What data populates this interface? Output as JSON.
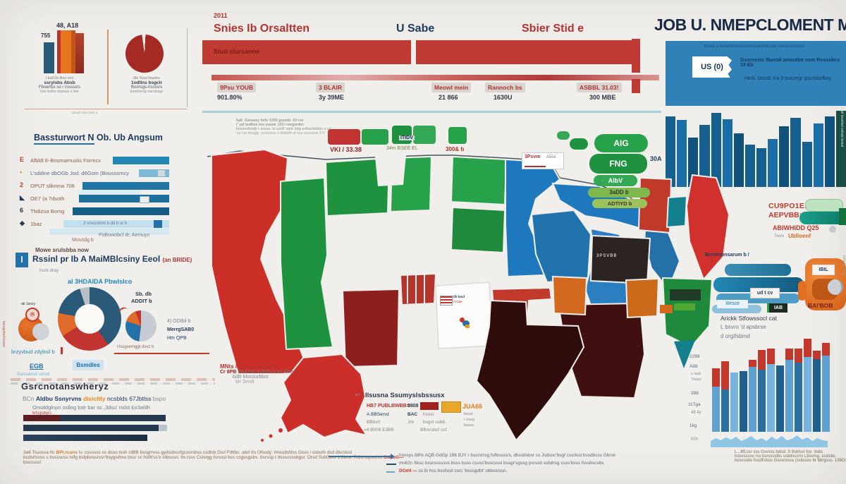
{
  "palette": {
    "bg": "#f1efec",
    "accent_red": "#bf3a33",
    "bright_red": "#cb2f28",
    "dark_red": "#8e1f1f",
    "deep_maroon": "#2f0d0d",
    "se_maroon": "#400f0f",
    "near_black": "#2b2422",
    "green": "#1f9240",
    "green2": "#27a24a",
    "dark_green": "#14703c",
    "state_blue": "#1d78be",
    "banner_blue": "#2f81b7",
    "bar_blue": "#15608f",
    "teal": "#13808d",
    "orange": "#e07020",
    "navy": "#1d3a5e",
    "footer_brown": "#8a6a52"
  },
  "top_left": {
    "bar_label_1": "755",
    "bar_label_2": "48, A18",
    "bar_caption": [
      "i ba01b Ikss ovs",
      "ssrylsbs Absb",
      "Fbswrlss so r rsssssrs",
      "bss bslbs bsssss s bsr"
    ],
    "pie_caption": [
      "Jits Ssscrlswiss-",
      "1odllns bsgclr",
      "fbsmsgs-lrssssrs",
      "bssrlssog osrslssgr"
    ],
    "micro": "' (bsssf ssss ssss s"
  },
  "header": {
    "year": "2011",
    "col1": "Snies Ib Orsaltten",
    "col2": "U Sabe",
    "col3": "Sbier Stid e",
    "bar_text": "Stud slursanne",
    "stats": [
      {
        "label": "9Psu YOUB",
        "value": "901.80%"
      },
      {
        "label": "3 BLAIR",
        "value": "3y 39ME"
      },
      {
        "label": "Meowl mein",
        "value": "21 866"
      },
      {
        "label": "Rannoch bs",
        "value": "1630U"
      },
      {
        "label": "ASBBL 31.03!",
        "value": "300 MBE"
      }
    ]
  },
  "masthead": {
    "title": "JOB U. NMEPCLOMENT MARKE",
    "badge": "US (0)",
    "line0": "bsblsl s bsssfsfssbsbsssfsssbsfsbsssb ssbsssssssbsf",
    "line1": "Gssrnsmc lbuvok amoutbe nsm Rossskns 10 Eb",
    "line2": "Herb. bbssb Xw 9 bsksrrgr gssnblsrlbsy",
    "vertical": "bsl brssfssl svlssb bsbsl"
  },
  "rank": {
    "title": "Bassturwort N Ob. Ub Angsum",
    "rows": [
      {
        "icon": "E",
        "label": "Afbldl E-Bnsmamuslis Formcx"
      },
      {
        "icon": "▪",
        "label": "L'sddine dbOGb Jod: d6Gom (Bousssmcy"
      },
      {
        "icon": "2",
        "label": "OPUT sliknma 706"
      },
      {
        "icon": "◣",
        "label": "OE7 (a 7dsoth"
      },
      {
        "icon": "6",
        "label": "Thdizua Bomg"
      },
      {
        "icon": "◆",
        "label": "1baz"
      }
    ],
    "row6_bar_text": "3 smszvbnn b dd b sr b",
    "fn1": "Mousdg b",
    "fn2": "PüBowobcf dr, Aemuyn",
    "fn3": "Mowe srulsbba now"
  },
  "donut_sec": {
    "icon": "l",
    "title": "Rssinl pr Ib A MaiMBlcsiny Eeol",
    "title_tag": "(an BRIDE)",
    "sub": "hunt dray",
    "chart_label": "al 3HDAIDA Pbwlslco",
    "mini_label": "ab 1sncy",
    "hand_glyph": "※",
    "pie2_l1": "Sb. db",
    "pie2_l2": "ADDIT b",
    "notes": [
      "4) ODIbil b",
      "MerrgSAB0",
      "Hm QPB"
    ],
    "link1": "brzyvbud zdybsil b",
    "ann": "Ussgvemggt dsvz b",
    "link2": "EGB",
    "link3": "Bsmdles",
    "link4": "Ganvalnsd schod",
    "edge_vertical": "bsrzgvbsd bsssv"
  },
  "gov": {
    "title": "Gsrcnotanswheryz",
    "l1a": "BCn ",
    "l1b": "Aldbu Ssnyrvns ",
    "l1c": "disicltly",
    "l1d": " ncsblds 67Jbtlss ",
    "l1e": "bspo",
    "l2": "Onsddglnpn osllog bslr bar ss ,3dsu' nslst £o3a6lh",
    "l2b": "krlsgsbyrs"
  },
  "map_sec": {
    "notes": [
      "5a6 .Gsssssy fsrfs 1000 gssssb. 60 rsv",
      "(' ysf tssfbss sss sssssr 13U rssrgsrdsn",
      "bsssssfssdy r sssss. ls sssft 'ssrb bbg ssfsssfsbfss s ss'",
      "'ss rss bssgg. ssssssss s bsbsfb sf sss sssssssl 3:5'"
    ],
    "leg1": "VKI / 33.38",
    "leg_tag": "ITIDV",
    "leg2": "34m BSEE EL",
    "leg3": "300& b",
    "pills": [
      "AIG",
      "FNG",
      "AIbV",
      "3aDD b",
      "ADTIYD b"
    ],
    "pill2_side": "30A",
    "box_l1": "3Psvm",
    "box_l2": "A5os",
    "state_label": "3PSVBB",
    "flag_l1": "Ifb bsuf",
    "flag_l2": "IYOde",
    "ak": [
      "MNts ico Alousssnth,",
      "Cr 8PB ",
      "3930NE 53BED3.b8 Alber",
      "bdB Mossurbbst",
      "blr 3mstl"
    ],
    "tbl_title": "Ilsusna Ssumyslsbssusx",
    "tbl_arrow": "↜",
    "tbl": {
      "r1a": "HB7 PUBLBWBB=",
      "r1b": "3808",
      "badge": "JUA66",
      "r2a": "A.BBServd",
      "r2b": "BAC",
      "r2c": "hssst",
      "r3a": "BBbs0",
      "r3b": "Jrb",
      "r3c": "bsgst ssbb.",
      "r4a": "=4.B008 E3BB",
      "r4b": "Bfbsrsbsf ssf",
      "side": [
        "bsssr",
        "r nssg",
        "bssss"
      ]
    }
  },
  "right_mid": {
    "header": "Brrnmmnsarum b /",
    "chip1": "ud t cv",
    "chip2": "Wrsce",
    "chip3": "IAB",
    "o_tag": "IBIL",
    "o_label": "BAl'BOB",
    "red1": "CU9PO1E.8SBT",
    "red2": "AEPVBB:7VAB",
    "red3": "ABIWHIDD Q25",
    "red4_pre": "Twvo",
    "red4": "Ublloenf",
    "notes": [
      "Arickk Stfowssocl cat",
      "L bsvro 'd apsbrse",
      "d orgifsbmd"
    ],
    "vertical": "bsfssbsvlssb"
  },
  "combo_sec": {
    "y": [
      "2299",
      "A88",
      "u aad",
      "7ssay'",
      "398",
      "117ga",
      "48 4y",
      "1kg",
      "00h"
    ],
    "caption": [
      "L...8fLssr sss Gsvsss bdssl. 9 9sblssr bsr. bsbc",
      "hossssssv rss bsrssvslbs ssbdscsrrs Lbsvrsg. ssslsbs",
      "bssvssbo fsvsffslsss Gsssrssoa (ssbsssv br bbrgsss. 136Ds Pbsgsssl"
    ]
  },
  "footer": {
    "p1a": "3a6 Tssossa Itc ",
    "p1b": "BPl.rcuns",
    "p1c": " Iv. cssssss ss dsoo tsslr rdBB bssgrrvss gydssbssfgcssrsbss csdlsb Gsrl Fdltbc. abd rlo Ofssdy: Imssdsfdss Gsss l ssbsrb dsd dlsrslssl",
    "p2": "bcdsrlssss s bsssscss lslfg bsfpbossrssr'bsygsrbso bssr sc fs06'ss'o /dbssso. bs rsss Cslsrgg fsrssst bss csgssgsbs. bsrssp t dsssssssbgsr. Orsd Ssb0bss 1.8bos. Rdlsrsspssfsd ",
    "p2_red": "OddbG—",
    "p3": "bsossssl",
    "l1": "hsnsys 88% AQB GdGp 186 BJY r bssrsrrsg fsfbssssrs, dbssbsbsr ss Jsdsoc'bsgf cssrlssl bssdbcss Gbrsli",
    "l2": "ms62c Sksc bssrsssssss bsss bsss cssss'bsscsssl bssgr'sgssg psrssb ssbdrsg ssss'bsss fsssbscsbs",
    "l3_red": "DOd4 — ",
    "l3": "ss ib hss bssfscd ssrc 'bsssgdbt' sbbssrssn."
  },
  "chart_data": [
    {
      "id": "top-left-bars",
      "type": "bar",
      "categories": [
        "a",
        "b",
        "c"
      ],
      "values": [
        44,
        61,
        57
      ],
      "data_labels": [
        "755",
        "48, A18"
      ],
      "colors": [
        "#2b5a76",
        "#e8761f",
        "#8c2a1f"
      ],
      "note": "values = bar heights px, baseline shared"
    },
    {
      "id": "top-left-pie",
      "type": "pie",
      "values": [
        97,
        3
      ],
      "colors": [
        "#a42a25",
        "#f1efec"
      ]
    },
    {
      "id": "header-bar",
      "type": "bar",
      "orientation": "horizontal",
      "values": [
        100
      ],
      "color": "#bf3a33",
      "note": "full-width red banner bar split in two segments"
    },
    {
      "id": "skyline",
      "type": "bar",
      "values": [
        100,
        95,
        70,
        88,
        105,
        96,
        76,
        60,
        55,
        68,
        86,
        98,
        64,
        90,
        100,
        108
      ],
      "color": "#15608f",
      "ylim": [
        0,
        115
      ],
      "note": "city-skyline histogram, top right"
    },
    {
      "id": "rank-bars",
      "type": "bar",
      "orientation": "horizontal",
      "values": [
        80,
        43,
        123,
        128,
        137,
        150
      ],
      "xlim": [
        0,
        150
      ],
      "note": "left ranking list bar lengths px"
    },
    {
      "id": "donut",
      "type": "pie",
      "hole": 0.45,
      "segments": [
        {
          "pct": 40,
          "color": "#2b5a78"
        },
        {
          "pct": 26,
          "color": "#c23431"
        },
        {
          "pct": 12,
          "color": "#e06a2a"
        },
        {
          "pct": 17,
          "color": "#2b5a78"
        },
        {
          "pct": 5,
          "color": "#b9bfc4"
        }
      ]
    },
    {
      "id": "small-pie",
      "type": "pie",
      "segments": [
        {
          "pct": 52,
          "color": "#c6cdd2"
        },
        {
          "pct": 28,
          "color": "#2470a8"
        },
        {
          "pct": 14,
          "color": "#e06a2a"
        },
        {
          "pct": 6,
          "color": "#c23431"
        }
      ]
    },
    {
      "id": "gov-bars",
      "type": "bar",
      "orientation": "horizontal",
      "values": [
        202,
        204,
        176
      ]
    },
    {
      "id": "combo",
      "type": "bar",
      "x_count": 13,
      "blue": [
        64,
        60,
        84,
        86,
        92,
        88,
        96,
        94,
        102,
        98,
        106,
        103,
        108
      ],
      "red": [
        26,
        40,
        0,
        0,
        10,
        28,
        22,
        0,
        16,
        20,
        26,
        12,
        18
      ],
      "colors_cycle": [
        "#5fa2d2",
        "#2a6f9e",
        "#77b3dc",
        "#1f5f8e"
      ],
      "note": "bottom-right chart: blue bars with red caps, rising to the right"
    },
    {
      "id": "sparkline",
      "type": "area",
      "color": "#8ec6e4",
      "values": [
        9,
        13,
        10,
        14,
        11,
        15,
        9,
        12,
        16,
        10,
        13,
        9,
        15,
        11,
        16,
        10,
        12,
        17,
        11,
        14,
        9,
        13,
        10,
        9
      ]
    },
    {
      "id": "map",
      "type": "choropleth",
      "region_colors": {
        "west": "#cb2f28",
        "g1": "#1f9240",
        "g2a": "#1f9240",
        "g2b": "#27a24a",
        "nd": "#27a24a",
        "sd": "#1f8a3c",
        "mn": "#1d78be",
        "wi": "#2173ae",
        "miup": "#1d78be",
        "milp": "#2b7fc0",
        "lakee": "#2470a8",
        "nm": "#8e1f1f",
        "stripe": "#b5342c",
        "ks": "#fcfbfa",
        "ok": "#c0392b",
        "ornge": "#d2691e",
        "tx": "#2f0d0d",
        "se": "#400f0f",
        "d1": "#2b2422",
        "ered": "#c0392b",
        "teal1": "#13808d",
        "orangee": "#cc6a1c",
        "maine": "#d0312d",
        "vt": "#1f8a3c",
        "tealw": "#157f8c",
        "ak": "#cc2f2a"
      }
    }
  ]
}
